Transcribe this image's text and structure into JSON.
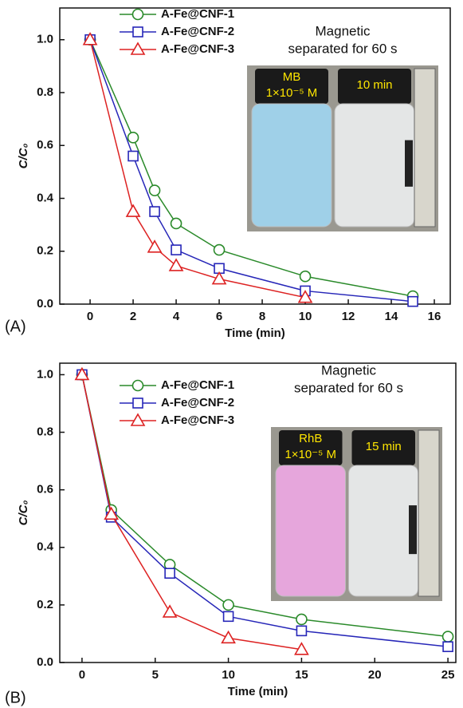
{
  "chart_data": [
    {
      "type": "line",
      "panel_label": "(A)",
      "xlabel": "Time (min)",
      "ylabel": "C/C₀",
      "xlim": [
        -1.41,
        16.74
      ],
      "xticks": [
        0,
        2,
        4,
        6,
        8,
        10,
        12,
        14,
        16
      ],
      "ylim": [
        0,
        1.12
      ],
      "yticks": [
        {
          "value": 0,
          "label": "0.0"
        },
        0.2,
        0.4,
        0.6,
        0.8,
        {
          "value": 1,
          "label": "1.0"
        }
      ],
      "series": [
        {
          "name": "A-Fe@CNF-1",
          "color": "#2a8a2a",
          "marker": "circle",
          "x": [
            0,
            2,
            3,
            4,
            6,
            10,
            15
          ],
          "values": [
            1.0,
            0.63,
            0.43,
            0.305,
            0.205,
            0.105,
            0.03
          ]
        },
        {
          "name": "A-Fe@CNF-2",
          "color": "#2626b8",
          "marker": "square",
          "x": [
            0,
            2,
            3,
            4,
            6,
            10,
            15
          ],
          "values": [
            1.0,
            0.56,
            0.35,
            0.205,
            0.135,
            0.05,
            0.01
          ]
        },
        {
          "name": "A-Fe@CNF-3",
          "color": "#dd2222",
          "marker": "triangle",
          "x": [
            0,
            2,
            3,
            4,
            6,
            10
          ],
          "values": [
            1.0,
            0.35,
            0.215,
            0.145,
            0.095,
            0.025
          ]
        }
      ],
      "annotations": {
        "caption": [
          "Magnetic",
          "separated for 60 s"
        ],
        "photo_labels": [
          "MB",
          "1×10⁻⁵ M",
          "10 min"
        ],
        "liquid_color": "#9fd0e8"
      }
    },
    {
      "type": "line",
      "panel_label": "(B)",
      "xlabel": "Time (min)",
      "ylabel": "C/C₀",
      "xlim": [
        -1.52,
        25.54
      ],
      "xticks": [
        0,
        5,
        10,
        15,
        20,
        25
      ],
      "ylim": [
        0,
        1.04
      ],
      "yticks": [
        {
          "value": 0,
          "label": "0.0"
        },
        0.2,
        0.4,
        0.6,
        0.8,
        {
          "value": 1,
          "label": "1.0"
        }
      ],
      "series": [
        {
          "name": "A-Fe@CNF-1",
          "color": "#2a8a2a",
          "marker": "circle",
          "x": [
            0,
            2,
            6,
            10,
            15,
            25
          ],
          "values": [
            1.0,
            0.53,
            0.34,
            0.2,
            0.15,
            0.09
          ]
        },
        {
          "name": "A-Fe@CNF-2",
          "color": "#2626b8",
          "marker": "square",
          "x": [
            0,
            2,
            6,
            10,
            15,
            25
          ],
          "values": [
            1.0,
            0.505,
            0.31,
            0.16,
            0.11,
            0.055
          ]
        },
        {
          "name": "A-Fe@CNF-3",
          "color": "#dd2222",
          "marker": "triangle",
          "x": [
            0,
            2,
            6,
            10,
            15
          ],
          "values": [
            1.0,
            0.515,
            0.175,
            0.085,
            0.045
          ]
        }
      ],
      "annotations": {
        "caption": [
          "Magnetic",
          "separated for 60 s"
        ],
        "photo_labels": [
          "RhB",
          "1×10⁻⁵ M",
          "15 min"
        ],
        "liquid_color": "#e6a6dc"
      }
    }
  ]
}
